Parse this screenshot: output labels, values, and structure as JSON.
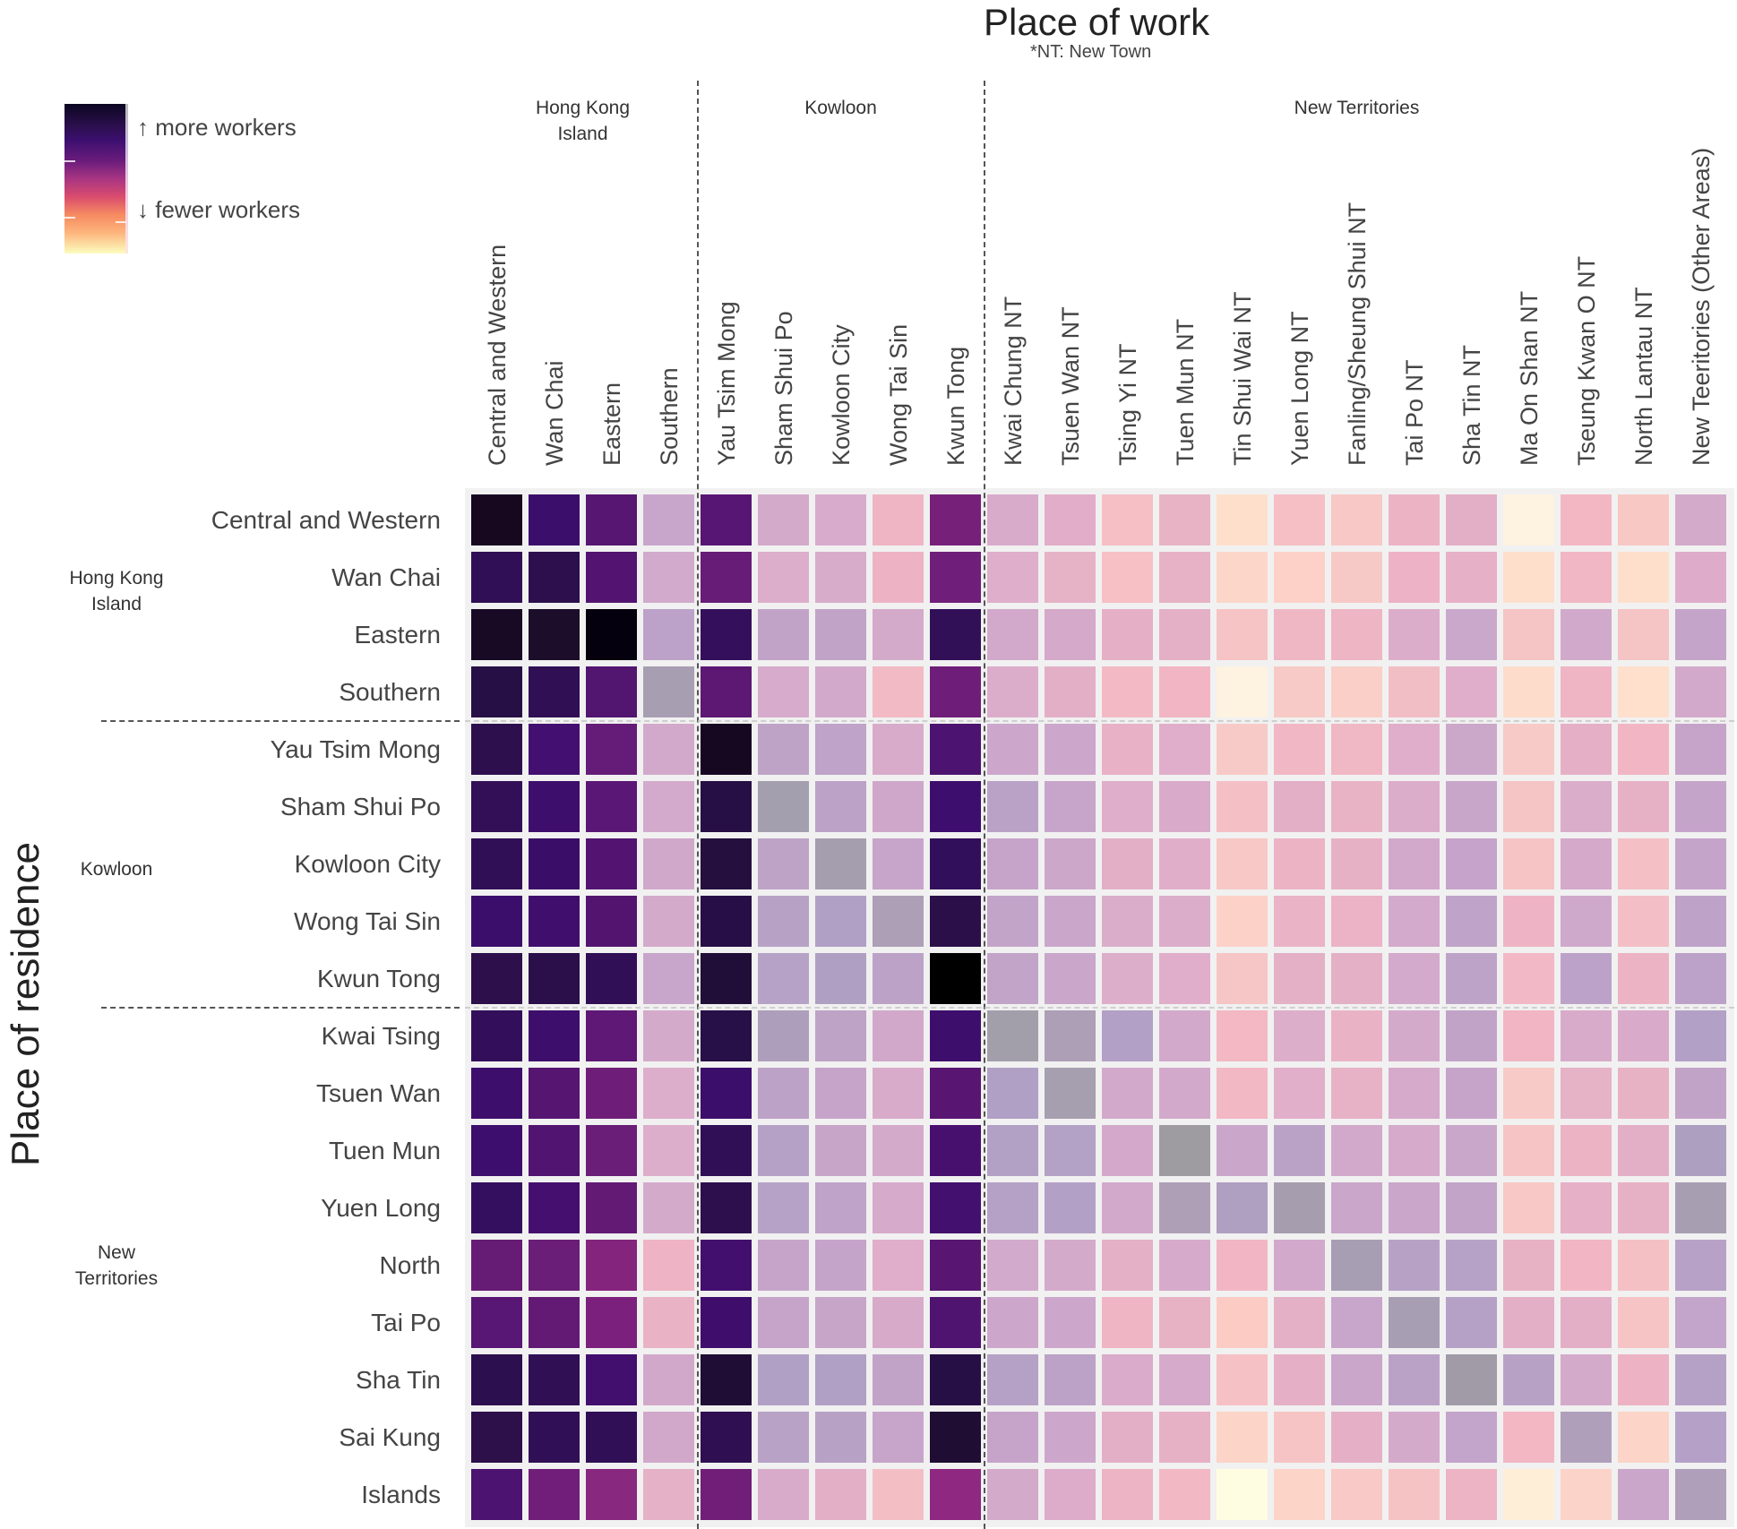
{
  "chart_data": {
    "type": "heatmap",
    "title": "Place of work",
    "subtitle": "*NT: New Town",
    "xlabel": "Place of work",
    "ylabel": "Place of residence",
    "colorscale": "magma (dark = more workers, light = fewer workers)",
    "legend": {
      "position": "top-left",
      "more_label": "↑ more workers",
      "fewer_label": "↓ fewer workers"
    },
    "column_groups": [
      {
        "label": "Hong Kong\nIsland",
        "line1": "Hong Kong",
        "line2": "Island",
        "start": 0,
        "end": 3
      },
      {
        "label": "Kowloon",
        "line1": "Kowloon",
        "line2": "",
        "start": 4,
        "end": 8
      },
      {
        "label": "New Territories",
        "line1": "New Territories",
        "line2": "",
        "start": 9,
        "end": 21
      }
    ],
    "row_groups": [
      {
        "label": "Hong Kong\nIsland",
        "line1": "Hong Kong",
        "line2": "Island",
        "start": 0,
        "end": 3
      },
      {
        "label": "Kowloon",
        "line1": "Kowloon",
        "line2": "",
        "start": 4,
        "end": 8
      },
      {
        "label": "New\nTerritories",
        "line1": "New",
        "line2": "Territories",
        "start": 9,
        "end": 17
      }
    ],
    "columns": [
      "Central and Western",
      "Wan Chai",
      "Eastern",
      "Southern",
      "Yau Tsim Mong",
      "Sham Shui Po",
      "Kowloon City",
      "Wong Tai Sin",
      "Kwun Tong",
      "Kwai Chung NT",
      "Tsuen Wan NT",
      "Tsing Yi NT",
      "Tuen Mun NT",
      "Tin Shui Wai NT",
      "Yuen Long NT",
      "Fanling/Sheung Shui NT",
      "Tai Po NT",
      "Sha Tin NT",
      "Ma On Shan NT",
      "Tseung Kwan O NT",
      "North Lantau NT",
      "New Teeritories (Other Areas)"
    ],
    "rows": [
      "Central and Western",
      "Wan Chai",
      "Eastern",
      "Southern",
      "Yau Tsim Mong",
      "Sham Shui Po",
      "Kowloon City",
      "Wong Tai Sin",
      "Kwun Tong",
      "Kwai Tsing",
      "Tsuen Wan",
      "Tuen Mun",
      "Yuen Long",
      "North",
      "Tai Po",
      "Sha Tin",
      "Sai Kung",
      "Islands"
    ],
    "cell_colors": [
      [
        "#170820",
        "#3C0E6C",
        "#561672",
        "#C8A5CB",
        "#581674",
        "#D4AACB",
        "#D8ABCC",
        "#EFB5C4",
        "#76207A",
        "#D8ABCB",
        "#E1ADC8",
        "#F5BFC5",
        "#E7B3C5",
        "#FEDFCC",
        "#F5BFC5",
        "#F7C8C6",
        "#ECB3C5",
        "#E3AFC6",
        "#FEF2E0",
        "#F3B7C3",
        "#F8C8C4",
        "#D4AACB"
      ],
      [
        "#310F56",
        "#2D0F4E",
        "#521470",
        "#D2AACC",
        "#671C78",
        "#DCAECB",
        "#D7ACCB",
        "#EDB3C5",
        "#6F1F7A",
        "#DEAECA",
        "#E6B2C6",
        "#F6C0C5",
        "#E7B2C5",
        "#FCD6C8",
        "#FDD1C8",
        "#F7C9C6",
        "#EDB2C5",
        "#E6B0C6",
        "#FDDFCC",
        "#F1B7C4",
        "#FEDFCB",
        "#DEACCA"
      ],
      [
        "#180A24",
        "#1C0D2A",
        "#04000D",
        "#BCA2C8",
        "#330F5C",
        "#C2A3C8",
        "#C1A3C8",
        "#D4AACA",
        "#321058",
        "#D2A9CA",
        "#D5A9CA",
        "#E5B0C6",
        "#E4B0C6",
        "#F6C4C5",
        "#EFB6C4",
        "#EEB5C4",
        "#DCADCA",
        "#CAA8CB",
        "#F5C4C5",
        "#D1AACB",
        "#F5C4C5",
        "#C5A4CA"
      ],
      [
        "#260F45",
        "#300F55",
        "#521570",
        "#A89EB2",
        "#5D1874",
        "#D6ABCB",
        "#D2A9CB",
        "#F2BAC5",
        "#6E1E78",
        "#DBADCA",
        "#E3AFC7",
        "#F3BAC5",
        "#F2B5C4",
        "#FEF2E0",
        "#F8CAC7",
        "#F9CFC7",
        "#F1BEC6",
        "#E0AECA",
        "#FDDCCB",
        "#EFB5C4",
        "#FEE0CC",
        "#D3A9CB"
      ],
      [
        "#2E0F4D",
        "#430F70",
        "#651C78",
        "#D2A9CB",
        "#170822",
        "#BEA3C7",
        "#BFA3C8",
        "#D8ABCA",
        "#4C1470",
        "#CCA7CB",
        "#CDA7CB",
        "#E8B1C5",
        "#E0AECA",
        "#F8CAC7",
        "#F2B7C4",
        "#F0B8C4",
        "#E0AECA",
        "#CBA8CA",
        "#F8CAC7",
        "#E5B0C6",
        "#F2B5C4",
        "#C6A4CA"
      ],
      [
        "#320F57",
        "#3E0E6D",
        "#5B1775",
        "#D3AACB",
        "#260F44",
        "#A39FAE",
        "#BDA2C7",
        "#CEA7CA",
        "#3E0E6E",
        "#BAA2C6",
        "#C7A5CA",
        "#DEAECA",
        "#D9AACA",
        "#F4BFC5",
        "#E3AFC6",
        "#E8B3C5",
        "#DCADCA",
        "#C8A6CA",
        "#F5C4C5",
        "#DAADCA",
        "#E6B1C5",
        "#C5A4CA"
      ],
      [
        "#310F56",
        "#3A0E68",
        "#521470",
        "#D0A8CA",
        "#240F3F",
        "#BEA3C7",
        "#A59EAF",
        "#C7A4C9",
        "#320F5A",
        "#C6A4C9",
        "#CCA7CA",
        "#E3AFC6",
        "#E1AECA",
        "#F7C8C6",
        "#ECB3C5",
        "#E7B1C5",
        "#D2A9CB",
        "#C5A3CA",
        "#F6C4C5",
        "#D4A9CA",
        "#F4BFC5",
        "#C5A4CA"
      ],
      [
        "#3C0E6C",
        "#400F6D",
        "#531470",
        "#D4AACB",
        "#270E46",
        "#B7A2C6",
        "#B1A0C5",
        "#AC9FB6",
        "#2A0F48",
        "#C3A4C9",
        "#C9A6CA",
        "#DAAECA",
        "#DCADCA",
        "#FCD1C8",
        "#EBB3C6",
        "#EBB3C5",
        "#D3AACB",
        "#BFA3C8",
        "#EEB4C5",
        "#CFA9CB",
        "#F3BEC5",
        "#BFA2C8"
      ],
      [
        "#2C0F4B",
        "#2B0F4A",
        "#300F56",
        "#C8A6CB",
        "#210E38",
        "#B6A2C6",
        "#AFA0C3",
        "#BCA2C7",
        "#000000",
        "#C2A4C8",
        "#CAA6CA",
        "#DCAECA",
        "#E0AECA",
        "#F6C5C5",
        "#E4B0C6",
        "#E4B0C6",
        "#D3AACB",
        "#BEA3C8",
        "#F3B8C5",
        "#BCA2C8",
        "#ECB3C5",
        "#BCA2C8"
      ],
      [
        "#330F5B",
        "#3E0E6C",
        "#5F1875",
        "#D4AACB",
        "#270F48",
        "#AD9FBB",
        "#BEA3C7",
        "#D1A8CA",
        "#3E0E6D",
        "#A39FAA",
        "#AC9FB6",
        "#B2A0C6",
        "#D2A9CB",
        "#F3B8C4",
        "#DCAECA",
        "#EAB3C5",
        "#D4AACB",
        "#C2A3C8",
        "#F2B5C4",
        "#D8ABCA",
        "#DAAACA",
        "#B3A0C6"
      ],
      [
        "#3E0E6D",
        "#561571",
        "#6E1E78",
        "#DCAECB",
        "#3C0E6C",
        "#BDA2C7",
        "#C6A4C9",
        "#D9ABCA",
        "#581572",
        "#B1A0C5",
        "#A69FAF",
        "#D3A9CB",
        "#D2A9CB",
        "#F2B8C4",
        "#E1AFCA",
        "#E7B2C5",
        "#D5AACB",
        "#C6A4C9",
        "#F8CAC7",
        "#E6B2C5",
        "#E8B2C5",
        "#C1A3C8"
      ],
      [
        "#3D0E6D",
        "#511470",
        "#6A1E78",
        "#DCAECB",
        "#300F56",
        "#B5A1C6",
        "#C7A5C9",
        "#D4AACA",
        "#48106E",
        "#B2A0C5",
        "#B4A1C6",
        "#D3A8CA",
        "#9E9BA1",
        "#CAA6CA",
        "#BAA2C7",
        "#D2A9CB",
        "#D5AACB",
        "#C9A7CA",
        "#F6C4C5",
        "#ECB3C5",
        "#E3AFC6",
        "#AC9FC0"
      ],
      [
        "#340F5F",
        "#450F70",
        "#621A75",
        "#D4AACB",
        "#2D0F4E",
        "#B6A2C6",
        "#C0A3C8",
        "#D6AACA",
        "#43106F",
        "#B5A1C6",
        "#B3A0C6",
        "#D3A9CB",
        "#AE9FB7",
        "#AF9FC0",
        "#A69EAE",
        "#C9A6CA",
        "#CAA6CB",
        "#C2A4C8",
        "#F8C8C6",
        "#E6B0C6",
        "#E7B1C5",
        "#A89EB2"
      ],
      [
        "#661C75",
        "#6A1E77",
        "#84247D",
        "#EEB3C5",
        "#430F6E",
        "#C6A4C9",
        "#C5A4C9",
        "#E0ADCA",
        "#581672",
        "#D2AACB",
        "#D4AACB",
        "#E4B0C6",
        "#D6AACB",
        "#F2B5C4",
        "#D3A9CB",
        "#A79EB3",
        "#B7A2C6",
        "#B6A2C6",
        "#E8B2C5",
        "#F2B5C4",
        "#F5C0C4",
        "#B8A1C6"
      ],
      [
        "#581675",
        "#621A74",
        "#7B217D",
        "#E9B2C5",
        "#3F0E6D",
        "#C6A4C9",
        "#C7A5C9",
        "#D8AACA",
        "#4F1370",
        "#CDA7CB",
        "#CDA7CB",
        "#EFB5C4",
        "#E8B2C5",
        "#FBCBC4",
        "#E4B0C6",
        "#C8A6CB",
        "#A79EB3",
        "#B5A1C6",
        "#E3AFC6",
        "#E3AFC6",
        "#F6C4C5",
        "#C3A4CA"
      ],
      [
        "#2C0F4E",
        "#300F55",
        "#430F6E",
        "#D2A8CA",
        "#1F0D35",
        "#B1A0C5",
        "#B0A0C5",
        "#C1A3C8",
        "#260F44",
        "#B5A1C6",
        "#BCA2C7",
        "#DAABCA",
        "#D5AACB",
        "#F6C1C5",
        "#E5B0C6",
        "#CAA6CA",
        "#BAA2C7",
        "#A09BA6",
        "#B7A2C6",
        "#D4AACB",
        "#EDB3C5",
        "#B6A1C6"
      ],
      [
        "#2D0F4A",
        "#300F56",
        "#300F56",
        "#D1A8CA",
        "#2F0F51",
        "#B8A2C6",
        "#B7A2C6",
        "#C7A4C9",
        "#1F0D33",
        "#C6A4C9",
        "#CDA7CB",
        "#E3AFC6",
        "#E7B1C5",
        "#FCD4C8",
        "#F7C4C5",
        "#E5B0C6",
        "#D4AACB",
        "#C3A4CA",
        "#F3B7C4",
        "#AF9FBB",
        "#FCD4C8",
        "#B5A1C7"
      ],
      [
        "#4C1370",
        "#701E79",
        "#89287F",
        "#E4B1C6",
        "#701E78",
        "#D8ABCB",
        "#E2AFC7",
        "#F3BFC5",
        "#8F2880",
        "#D4AACB",
        "#DCACCA",
        "#ECB4C5",
        "#F2B9C5",
        "#FEFDE2",
        "#FCD4C8",
        "#F8C9C6",
        "#F6C3C5",
        "#ECB4C5",
        "#FEEDD7",
        "#FCD3C8",
        "#CAA6CB",
        "#AF9FBA"
      ]
    ]
  }
}
